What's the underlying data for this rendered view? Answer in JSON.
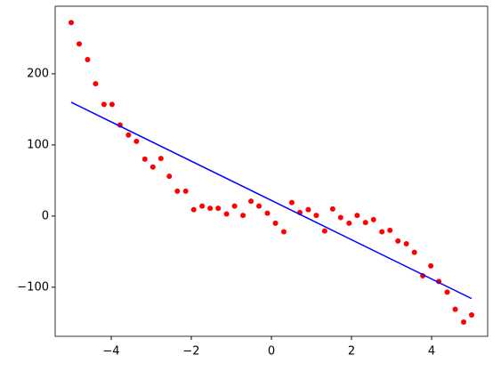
{
  "chart_data": {
    "type": "scatter",
    "series": [
      {
        "type": "scatter",
        "color": "#ff0000",
        "x": [
          -5,
          -4.8,
          -4.59,
          -4.39,
          -4.18,
          -3.98,
          -3.78,
          -3.57,
          -3.37,
          -3.16,
          -2.96,
          -2.76,
          -2.55,
          -2.35,
          -2.14,
          -1.94,
          -1.73,
          -1.53,
          -1.33,
          -1.12,
          -0.92,
          -0.71,
          -0.51,
          -0.31,
          -0.1,
          0.1,
          0.31,
          0.51,
          0.71,
          0.92,
          1.12,
          1.33,
          1.53,
          1.73,
          1.94,
          2.14,
          2.35,
          2.55,
          2.76,
          2.96,
          3.16,
          3.37,
          3.57,
          3.78,
          3.98,
          4.18,
          4.39,
          4.59,
          4.8,
          5
        ],
        "values": [
          272,
          242,
          220,
          186,
          157,
          157,
          128,
          114,
          105,
          80,
          69,
          81,
          56,
          35,
          35,
          9,
          14,
          11,
          11,
          3,
          14,
          1,
          21,
          14,
          4,
          -10,
          -22,
          19,
          5,
          9,
          1,
          -21,
          10,
          -2,
          -10,
          1,
          -9,
          -5,
          -22,
          -20,
          -35,
          -39,
          -51,
          -84,
          -70,
          -92,
          -107,
          -131,
          -149,
          -139
        ]
      },
      {
        "type": "line",
        "color": "#0000ff",
        "x": [
          -5,
          5
        ],
        "values": [
          160,
          -116
        ]
      }
    ],
    "xlim": [
      -5.4,
      5.4
    ],
    "ylim": [
      -169,
      295
    ],
    "xticks": [
      {
        "value": -4,
        "label": "−4"
      },
      {
        "value": -2,
        "label": "−2"
      },
      0,
      2,
      4
    ],
    "yticks": [
      {
        "value": -100,
        "label": "−100"
      },
      0,
      100,
      200
    ]
  }
}
